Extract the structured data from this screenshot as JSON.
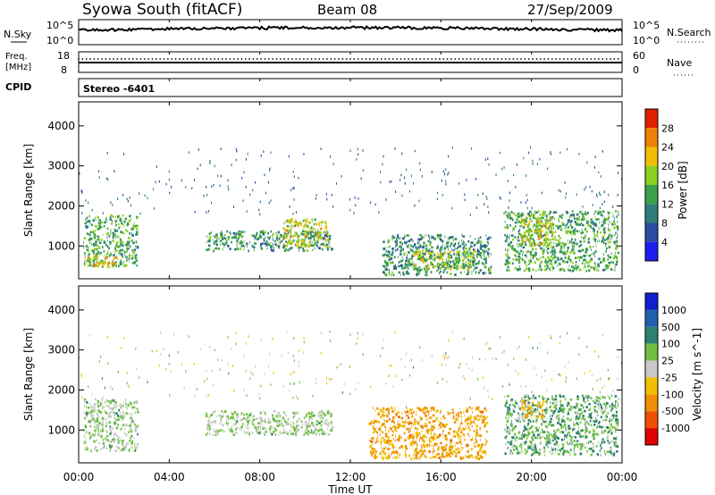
{
  "header": {
    "station": "Syowa South (fitACF)",
    "beam": "Beam 08",
    "date": "27/Sep/2009"
  },
  "top_panels": {
    "nsky": {
      "left_label": "N.Sky",
      "right_label": "N.Search",
      "left_ticks": [
        "10^5",
        "10^0"
      ],
      "right_ticks": [
        "10^5",
        "10^0"
      ]
    },
    "freq": {
      "label_line1": "Freq.",
      "label_line2": "[MHz]",
      "left_ticks": [
        "18",
        "8"
      ],
      "right_label": "Nave",
      "right_ticks": [
        "60",
        "0"
      ]
    },
    "cpid": {
      "label": "CPID",
      "value": "Stereo -6401"
    }
  },
  "chart_data": [
    {
      "type": "heatmap",
      "name": "power",
      "ylabel": "Slant Range [km]",
      "yticks": [
        "4000",
        "3000",
        "2000",
        "1000"
      ],
      "ylim": [
        180,
        4600
      ],
      "xlim": [
        0,
        24
      ],
      "colorbar": {
        "label": "Power [dB]",
        "ticks": [
          "28",
          "24",
          "20",
          "16",
          "12",
          "8",
          "4"
        ],
        "range": [
          0,
          32
        ]
      },
      "scatter_clusters": [
        {
          "t0": 0.2,
          "t1": 2.6,
          "r0": 500,
          "r1": 1800,
          "v": 14
        },
        {
          "t0": 0.2,
          "t1": 1.6,
          "r0": 500,
          "r1": 800,
          "v": 22
        },
        {
          "t0": 5.6,
          "t1": 11.2,
          "r0": 900,
          "r1": 1400,
          "v": 12
        },
        {
          "t0": 9.0,
          "t1": 11.0,
          "r0": 1000,
          "r1": 1700,
          "v": 20
        },
        {
          "t0": 13.4,
          "t1": 18.2,
          "r0": 300,
          "r1": 1300,
          "v": 12
        },
        {
          "t0": 14.5,
          "t1": 17.5,
          "r0": 450,
          "r1": 900,
          "v": 18
        },
        {
          "t0": 18.8,
          "t1": 23.8,
          "r0": 400,
          "r1": 1900,
          "v": 14
        },
        {
          "t0": 19.5,
          "t1": 21.0,
          "r0": 1000,
          "r1": 1800,
          "v": 20
        }
      ]
    },
    {
      "type": "heatmap",
      "name": "velocity",
      "ylabel": "Slant Range [km]",
      "yticks": [
        "4000",
        "3000",
        "2000",
        "1000"
      ],
      "ylim": [
        180,
        4600
      ],
      "xlim": [
        0,
        24
      ],
      "colorbar": {
        "label": "Velocity [m s^-1]",
        "ticks": [
          "1000",
          "500",
          "100",
          "25",
          "-25",
          "-100",
          "-500",
          "-1000"
        ],
        "range": [
          -1000,
          1000
        ]
      },
      "scatter_clusters": [
        {
          "t0": 0.2,
          "t1": 2.6,
          "r0": 500,
          "r1": 1800,
          "v": 150
        },
        {
          "t0": 5.6,
          "t1": 11.2,
          "r0": 900,
          "r1": 1500,
          "v": 120
        },
        {
          "t0": 12.8,
          "t1": 18.0,
          "r0": 300,
          "r1": 1600,
          "v": -350
        },
        {
          "t0": 18.8,
          "t1": 23.8,
          "r0": 400,
          "r1": 1900,
          "v": 300
        },
        {
          "t0": 19.5,
          "t1": 20.5,
          "r0": 1300,
          "r1": 1800,
          "v": -200
        }
      ]
    }
  ],
  "xaxis": {
    "ticks": [
      "00:00",
      "04:00",
      "08:00",
      "12:00",
      "16:00",
      "20:00",
      "00:00"
    ],
    "label": "Time UT"
  },
  "colors": {
    "power_scale": [
      "#1e1ef0",
      "#2a4ca0",
      "#2e7d78",
      "#3aa04a",
      "#8ad020",
      "#f0c000",
      "#f08000",
      "#e02000"
    ],
    "velocity_scale": [
      "#e00000",
      "#f05000",
      "#f09000",
      "#f0c000",
      "#c8c8c8",
      "#70c040",
      "#2e8070",
      "#2060b0",
      "#1020d0"
    ]
  }
}
